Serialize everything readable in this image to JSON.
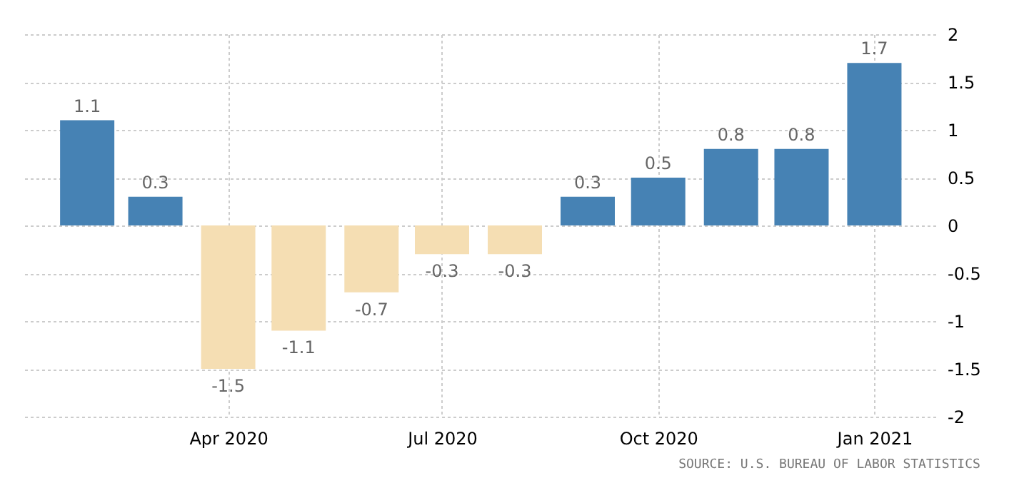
{
  "chart_data": {
    "type": "bar",
    "x": [
      "2020-02",
      "2020-03",
      "2020-04",
      "2020-05",
      "2020-06",
      "2020-07",
      "2020-08",
      "2020-09",
      "2020-10",
      "2020-11",
      "2020-12",
      "2021-01"
    ],
    "values": [
      1.1,
      0.3,
      -1.5,
      -1.1,
      -0.7,
      -0.3,
      -0.3,
      0.3,
      0.5,
      0.8,
      0.8,
      1.7
    ],
    "colors": [
      "#4682b4",
      "#4682b4",
      "#f5deb3",
      "#f5deb3",
      "#f5deb3",
      "#f5deb3",
      "#f5deb3",
      "#4682b4",
      "#4682b4",
      "#4682b4",
      "#4682b4",
      "#4682b4"
    ],
    "data_labels": true,
    "xlim": [
      "2020-01-04",
      "2021-01-27"
    ],
    "xticks": [
      {
        "value": "2020-04",
        "label": "Apr 2020"
      },
      {
        "value": "2020-07",
        "label": "Jul 2020"
      },
      {
        "value": "2020-10",
        "label": "Oct 2020"
      },
      {
        "value": "2021-01",
        "label": "Jan 2021"
      }
    ],
    "ylim": [
      -2,
      2
    ],
    "yticks": [
      -2,
      -1.5,
      -1,
      -0.5,
      0,
      0.5,
      1,
      1.5,
      2
    ],
    "grid": true,
    "annotations": [
      "SOURCE: U.S. BUREAU OF LABOR STATISTICS"
    ]
  }
}
